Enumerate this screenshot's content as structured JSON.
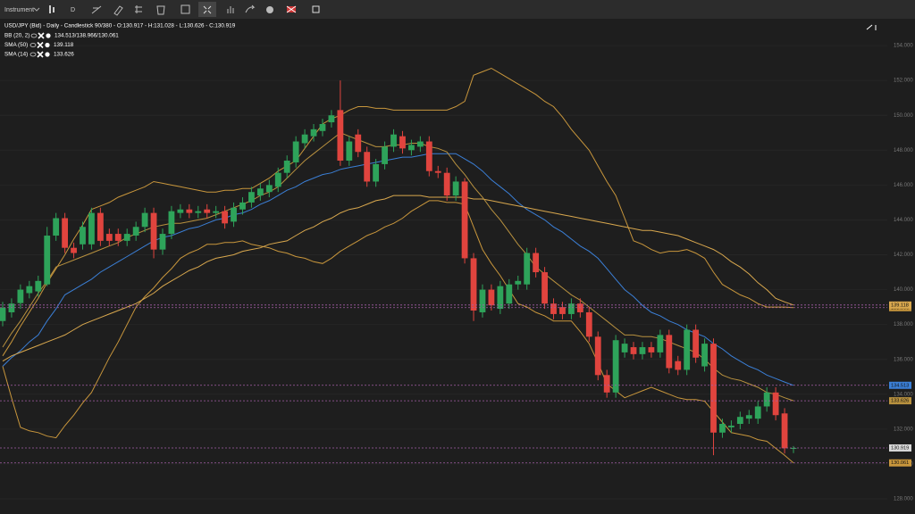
{
  "toolbar": {
    "instrument": "Instrument",
    "interval": "D"
  },
  "chart_data": {
    "type": "candlestick",
    "title": "USD/JPY (Bid) - Daily - Candlestick  90/380 - O:130.917 - H:131.028 - L:130.626 - C:130.919",
    "up_color": "#2ea35a",
    "down_color": "#e0443e",
    "ylim": [
      127.13,
      155.54
    ],
    "yticks": [
      {
        "value": 154,
        "label": "154.000"
      },
      {
        "value": 152,
        "label": "152.000"
      },
      {
        "value": 150,
        "label": "150.000"
      },
      {
        "value": 148,
        "label": "148.000"
      },
      {
        "value": 146,
        "label": "146.000"
      },
      {
        "value": 144,
        "label": "144.000"
      },
      {
        "value": 142,
        "label": "142.000"
      },
      {
        "value": 140,
        "label": "140.000"
      },
      {
        "value": 138,
        "label": "138.000"
      },
      {
        "value": 136,
        "label": "136.000"
      },
      {
        "value": 134,
        "label": "134.000"
      },
      {
        "value": 132,
        "label": "132.000"
      },
      {
        "value": 130,
        "label": "130.000"
      },
      {
        "value": 128,
        "label": "128.000"
      }
    ],
    "grid": true,
    "open": [
      138.2,
      138.7,
      139.23,
      139.8,
      139.9,
      140.3,
      143.1,
      144.1,
      142.4,
      142.6,
      142.6,
      144.4,
      143.2,
      143.2,
      142.8,
      143.1,
      143.6,
      144.4,
      142.3,
      143.2,
      144.4,
      144.6,
      144.4,
      144.6,
      144.4,
      144.5,
      143.9,
      144.6,
      145.0,
      145.4,
      145.6,
      145.9,
      146.7,
      147.3,
      148.4,
      148.8,
      149.1,
      149.6,
      150.3,
      147.4,
      148.9,
      147.9,
      146.2,
      147.2,
      148.2,
      148.8,
      148.0,
      148.2,
      148.5,
      146.8,
      146.7,
      145.4,
      146.2,
      141.8,
      138.7,
      140.0,
      138.9,
      139.2,
      140.3,
      140.3,
      142.1,
      141.0,
      139.2,
      139.0,
      138.6,
      139.2,
      138.7,
      137.3,
      135.1,
      134.1,
      136.4,
      136.7,
      136.3,
      136.7,
      136.4,
      137.4,
      135.9,
      135.4,
      137.7,
      135.6,
      136.9,
      131.8,
      132.1,
      132.3,
      132.6,
      132.6,
      133.3,
      134.1,
      132.9,
      130.917
    ],
    "high": [
      139.3,
      139.5,
      140.3,
      140.5,
      140.8,
      143.6,
      144.4,
      144.4,
      142.7,
      143.9,
      144.7,
      144.7,
      143.5,
      143.5,
      143.5,
      143.9,
      144.7,
      144.7,
      143.5,
      144.8,
      144.9,
      144.9,
      144.8,
      144.9,
      144.8,
      144.8,
      145.0,
      145.3,
      145.9,
      146.1,
      146.3,
      147.0,
      147.7,
      148.8,
      149.2,
      149.5,
      149.8,
      150.3,
      152.0,
      148.8,
      149.2,
      148.2,
      147.5,
      148.5,
      149.2,
      149.1,
      148.6,
      148.8,
      148.8,
      147.1,
      147.0,
      146.5,
      146.4,
      142.1,
      140.3,
      140.3,
      140.5,
      140.6,
      140.8,
      142.4,
      142.4,
      141.3,
      139.5,
      139.3,
      139.5,
      139.5,
      139.0,
      137.6,
      135.4,
      137.4,
      137.2,
      137.0,
      137.0,
      137.0,
      137.7,
      137.7,
      136.2,
      138.0,
      138.0,
      137.2,
      137.2,
      132.6,
      132.5,
      133.0,
      133.1,
      133.6,
      134.4,
      134.4,
      133.2,
      131.028
    ],
    "low": [
      137.9,
      138.4,
      138.9,
      139.5,
      139.6,
      140.2,
      142.8,
      142.1,
      141.8,
      142.3,
      142.3,
      142.5,
      142.5,
      142.5,
      142.5,
      142.8,
      143.3,
      141.8,
      142.0,
      142.9,
      144.1,
      144.1,
      144.1,
      144.1,
      144.1,
      143.5,
      143.6,
      144.3,
      144.7,
      145.1,
      145.3,
      145.6,
      146.4,
      147.0,
      148.1,
      148.5,
      148.8,
      149.3,
      147.1,
      147.1,
      147.6,
      145.9,
      145.9,
      146.9,
      147.9,
      147.8,
      147.7,
      147.9,
      146.5,
      146.4,
      145.1,
      145.1,
      141.5,
      138.2,
      138.4,
      138.8,
      138.6,
      138.9,
      140.0,
      140.0,
      140.7,
      138.9,
      138.3,
      138.3,
      138.3,
      138.4,
      137.0,
      134.8,
      133.8,
      133.8,
      136.1,
      136.0,
      136.0,
      136.1,
      136.1,
      135.2,
      135.1,
      135.1,
      135.8,
      135.3,
      130.5,
      131.5,
      131.8,
      132.0,
      132.3,
      132.3,
      133.0,
      132.5,
      130.6,
      130.626
    ],
    "close": [
      138.97,
      139.2,
      140.0,
      140.2,
      140.5,
      143.1,
      144.1,
      142.4,
      142.1,
      143.6,
      144.4,
      142.8,
      142.8,
      142.8,
      143.2,
      143.6,
      144.4,
      142.3,
      143.2,
      144.5,
      144.6,
      144.4,
      144.5,
      144.4,
      144.5,
      143.8,
      144.7,
      145.0,
      145.6,
      145.8,
      146.0,
      146.7,
      147.4,
      148.5,
      148.9,
      149.2,
      149.5,
      150.0,
      147.4,
      148.5,
      147.9,
      146.2,
      147.2,
      148.2,
      148.9,
      148.1,
      148.3,
      148.5,
      146.8,
      146.7,
      145.4,
      146.2,
      141.8,
      138.8,
      140.0,
      139.1,
      140.2,
      140.3,
      140.5,
      142.1,
      141.0,
      139.2,
      138.6,
      138.6,
      139.2,
      138.7,
      137.3,
      135.1,
      134.1,
      137.1,
      136.9,
      136.3,
      136.7,
      136.4,
      137.4,
      135.5,
      135.4,
      137.7,
      136.1,
      136.9,
      131.8,
      132.3,
      132.2,
      132.7,
      132.8,
      133.3,
      134.1,
      132.8,
      130.9,
      130.919
    ],
    "indicators": [
      {
        "label": "BB (20, 2)",
        "value": "134.513/138.966/130.061",
        "lines": [
          {
            "color": "#3b7fd6",
            "values": [
              135.6,
              136.1,
              136.5,
              137.0,
              137.4,
              138.2,
              138.9,
              139.7,
              140.0,
              140.3,
              140.6,
              141.0,
              141.3,
              141.6,
              141.9,
              142.2,
              142.5,
              142.8,
              143.0,
              143.1,
              143.3,
              143.5,
              143.6,
              143.8,
              144.0,
              144.1,
              144.3,
              144.4,
              144.6,
              144.9,
              145.1,
              145.4,
              145.7,
              145.9,
              146.2,
              146.4,
              146.6,
              146.7,
              146.9,
              147.0,
              147.1,
              147.2,
              147.3,
              147.4,
              147.5,
              147.6,
              147.6,
              147.7,
              147.8,
              147.8,
              147.8,
              147.8,
              147.5,
              147.2,
              146.8,
              146.3,
              145.9,
              145.5,
              145.0,
              144.6,
              144.3,
              144.0,
              143.6,
              143.3,
              142.9,
              142.5,
              142.2,
              141.8,
              141.2,
              140.6,
              140.0,
              139.6,
              139.1,
              138.7,
              138.5,
              138.2,
              138.0,
              137.7,
              137.5,
              137.3,
              136.9,
              136.6,
              136.2,
              135.9,
              135.6,
              135.4,
              135.1,
              134.9,
              134.7,
              134.513
            ]
          },
          {
            "color": "#c8963c",
            "values": [
              136.2,
              137.0,
              137.9,
              138.7,
              139.5,
              140.4,
              141.2,
              142.0,
              142.9,
              143.7,
              144.6,
              144.8,
              145.0,
              145.3,
              145.5,
              145.7,
              145.9,
              146.2,
              146.1,
              146.0,
              145.9,
              145.8,
              145.7,
              145.6,
              145.6,
              145.7,
              145.7,
              145.8,
              145.8,
              146.1,
              146.4,
              146.8,
              147.1,
              147.4,
              148.1,
              148.8,
              149.5,
              149.8,
              150.0,
              150.3,
              150.5,
              150.5,
              150.4,
              150.4,
              150.3,
              150.3,
              150.3,
              150.3,
              150.3,
              150.3,
              150.3,
              150.5,
              150.8,
              152.3,
              152.5,
              152.7,
              152.4,
              152.1,
              151.8,
              151.5,
              151.2,
              150.8,
              150.5,
              149.9,
              149.2,
              148.6,
              148.0,
              147.1,
              146.2,
              145.4,
              144.1,
              142.8,
              142.6,
              142.3,
              142.1,
              142.2,
              142.2,
              142.3,
              142.1,
              141.8,
              141.0,
              140.3,
              140.0,
              139.7,
              139.5,
              139.2,
              139.0,
              139.0,
              139.0,
              138.966
            ]
          },
          {
            "color": "#c8963c",
            "values": [
              135.6,
              133.8,
              132.1,
              131.9,
              131.8,
              131.6,
              131.5,
              132.2,
              132.8,
              133.5,
              134.1,
              135.1,
              136.1,
              137.0,
              138.0,
              139.0,
              139.6,
              140.1,
              140.7,
              141.2,
              141.8,
              142.1,
              142.3,
              142.6,
              142.6,
              142.7,
              142.7,
              142.8,
              142.6,
              142.5,
              142.4,
              142.2,
              142.1,
              141.9,
              141.8,
              141.6,
              141.5,
              141.8,
              142.2,
              142.5,
              142.8,
              143.1,
              143.3,
              143.6,
              143.8,
              144.1,
              144.5,
              144.8,
              145.1,
              145.1,
              145.0,
              145.0,
              144.9,
              143.6,
              142.3,
              141.5,
              140.8,
              140.0,
              139.2,
              139.0,
              138.7,
              138.5,
              138.2,
              138.2,
              138.2,
              137.6,
              136.9,
              135.8,
              134.6,
              134.2,
              133.8,
              134.0,
              134.2,
              134.4,
              134.2,
              134.0,
              133.8,
              133.7,
              133.7,
              133.6,
              133.0,
              132.4,
              131.8,
              131.7,
              131.6,
              131.4,
              131.3,
              130.9,
              130.5,
              130.061
            ]
          }
        ]
      },
      {
        "label": "SMA (50)",
        "value": "139.118",
        "lines": [
          {
            "color": "#d9a84e",
            "values": [
              135.9,
              136.2,
              136.4,
              136.6,
              136.8,
              137.0,
              137.2,
              137.4,
              137.7,
              138.0,
              138.2,
              138.4,
              138.6,
              138.8,
              139.0,
              139.2,
              139.5,
              139.8,
              140.2,
              140.5,
              140.8,
              141.1,
              141.3,
              141.6,
              141.8,
              141.9,
              142.0,
              142.2,
              142.3,
              142.4,
              142.6,
              142.7,
              142.8,
              143.1,
              143.4,
              143.6,
              143.9,
              144.1,
              144.4,
              144.6,
              144.7,
              144.9,
              145.1,
              145.2,
              145.4,
              145.4,
              145.4,
              145.4,
              145.3,
              145.3,
              145.3,
              145.3,
              145.3,
              145.2,
              145.2,
              145.1,
              145.0,
              144.9,
              144.8,
              144.7,
              144.6,
              144.5,
              144.4,
              144.3,
              144.2,
              144.1,
              144.0,
              143.9,
              143.8,
              143.7,
              143.6,
              143.5,
              143.4,
              143.4,
              143.3,
              143.2,
              143.1,
              142.9,
              142.7,
              142.5,
              142.3,
              142.0,
              141.6,
              141.3,
              140.9,
              140.4,
              140.0,
              139.5,
              139.3,
              139.118
            ]
          }
        ]
      },
      {
        "label": "SMA (14)",
        "value": "133.626",
        "lines": [
          {
            "color": "#b8913f",
            "values": [
              136.7,
              137.5,
              138.2,
              139.0,
              139.8,
              140.5,
              141.3,
              141.5,
              141.7,
              141.9,
              142.1,
              142.3,
              142.5,
              142.7,
              143.0,
              143.2,
              143.4,
              143.6,
              143.7,
              143.8,
              143.8,
              143.9,
              144.0,
              144.1,
              144.3,
              144.5,
              144.7,
              144.9,
              145.1,
              145.4,
              145.6,
              145.9,
              146.4,
              146.9,
              147.4,
              147.8,
              148.2,
              148.6,
              149.0,
              148.8,
              148.6,
              148.4,
              148.2,
              148.2,
              148.3,
              148.3,
              148.4,
              148.4,
              148.2,
              148.1,
              147.9,
              147.2,
              146.6,
              145.9,
              145.3,
              144.6,
              144.0,
              143.3,
              142.6,
              142.0,
              141.3,
              140.9,
              140.5,
              140.1,
              139.7,
              139.4,
              139.0,
              138.6,
              138.2,
              137.8,
              137.4,
              137.4,
              137.3,
              137.3,
              137.2,
              137.0,
              136.8,
              136.6,
              136.4,
              136.0,
              135.5,
              135.1,
              134.9,
              134.8,
              134.6,
              134.4,
              134.1,
              134.0,
              133.8,
              133.626
            ]
          }
        ]
      }
    ]
  }
}
